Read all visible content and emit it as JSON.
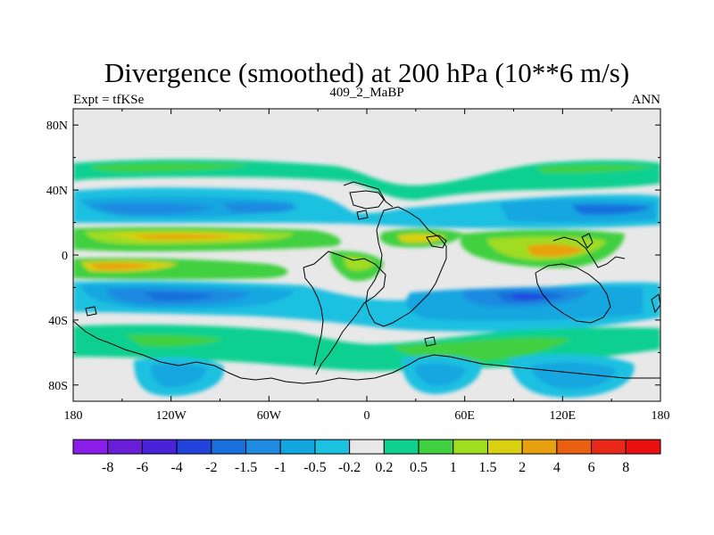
{
  "chart_data": {
    "type": "heatmap",
    "title": "Divergence (smoothed) at 200 hPa (10**6 m/s)",
    "left_label": "Expt = tfKSe",
    "center_label": "409_2_MaBP",
    "right_label": "ANN",
    "x_ticks": [
      {
        "value": -180,
        "label": "180"
      },
      {
        "value": -120,
        "label": "120W"
      },
      {
        "value": -60,
        "label": "60W"
      },
      {
        "value": 0,
        "label": "0"
      },
      {
        "value": 60,
        "label": "60E"
      },
      {
        "value": 120,
        "label": "120E"
      },
      {
        "value": 180,
        "label": "180"
      }
    ],
    "y_ticks": [
      {
        "value": 80,
        "label": "80N"
      },
      {
        "value": 40,
        "label": "40N"
      },
      {
        "value": 0,
        "label": "0"
      },
      {
        "value": -40,
        "label": "40S"
      },
      {
        "value": -80,
        "label": "80S"
      }
    ],
    "xlim": [
      -180,
      180
    ],
    "ylim": [
      -90,
      90
    ],
    "colorbar": {
      "levels": [
        "-8",
        "-6",
        "-4",
        "-2",
        "-1.5",
        "-1",
        "-0.5",
        "-0.2",
        "0.2",
        "0.5",
        "1",
        "1.5",
        "2",
        "4",
        "6",
        "8"
      ],
      "colors": [
        "#8a1ee8",
        "#6a1ed8",
        "#4a22d8",
        "#2244dd",
        "#1870dc",
        "#1e8ae0",
        "#12a6e0",
        "#1cc0e0",
        "#e8e8e8",
        "#10d090",
        "#40d040",
        "#a0dc20",
        "#d8d010",
        "#e8a010",
        "#e86010",
        "#e82818",
        "#e81010"
      ]
    },
    "field": [
      {
        "lon": -100,
        "lat": 57,
        "rx": 130,
        "ry": 4,
        "value": 0.5
      },
      {
        "lon": 110,
        "lat": 55,
        "rx": 110,
        "ry": 5,
        "value": 0.5
      },
      {
        "lon": -100,
        "lat": 49,
        "rx": 130,
        "ry": 4,
        "value": 0.5
      },
      {
        "lon": -120,
        "lat": 38,
        "rx": 70,
        "ry": 5,
        "value": -0.5
      },
      {
        "lon": -120,
        "lat": 27,
        "rx": 75,
        "ry": 4,
        "value": -1
      },
      {
        "lon": -60,
        "lat": 28,
        "rx": 40,
        "ry": 4,
        "value": -1.5
      },
      {
        "lon": 75,
        "lat": 38,
        "rx": 60,
        "ry": 4,
        "value": -0.5
      },
      {
        "lon": 120,
        "lat": 30,
        "rx": 55,
        "ry": 5,
        "value": -1
      },
      {
        "lon": -110,
        "lat": 12,
        "rx": 80,
        "ry": 5,
        "value": 1
      },
      {
        "lon": -90,
        "lat": 12,
        "rx": 40,
        "ry": 3,
        "value": 1.5
      },
      {
        "lon": 130,
        "lat": 10,
        "rx": 50,
        "ry": 4,
        "value": 1
      },
      {
        "lon": 110,
        "lat": 2,
        "rx": 20,
        "ry": 4,
        "value": 2
      },
      {
        "lon": 30,
        "lat": 8,
        "rx": 18,
        "ry": 4,
        "value": 1.5
      },
      {
        "lon": -130,
        "lat": -8,
        "rx": 60,
        "ry": 4,
        "value": 1
      },
      {
        "lon": -140,
        "lat": -8,
        "rx": 25,
        "ry": 2,
        "value": 2
      },
      {
        "lon": -110,
        "lat": -28,
        "rx": 75,
        "ry": 7,
        "value": -1
      },
      {
        "lon": -100,
        "lat": -30,
        "rx": 30,
        "ry": 4,
        "value": -1.5
      },
      {
        "lon": 20,
        "lat": -25,
        "rx": 30,
        "ry": 5,
        "value": -1
      },
      {
        "lon": 90,
        "lat": -22,
        "rx": 40,
        "ry": 4,
        "value": -1
      },
      {
        "lon": 130,
        "lat": -28,
        "rx": 40,
        "ry": 6,
        "value": -1.5
      },
      {
        "lon": -130,
        "lat": -75,
        "rx": 35,
        "ry": 10,
        "value": -0.5
      },
      {
        "lon": 70,
        "lat": -70,
        "rx": 25,
        "ry": 12,
        "value": -0.5
      },
      {
        "lon": 130,
        "lat": -75,
        "rx": 35,
        "ry": 10,
        "value": -0.5
      },
      {
        "lon": 110,
        "lat": -55,
        "rx": 40,
        "ry": 5,
        "value": 0.5
      }
    ]
  }
}
